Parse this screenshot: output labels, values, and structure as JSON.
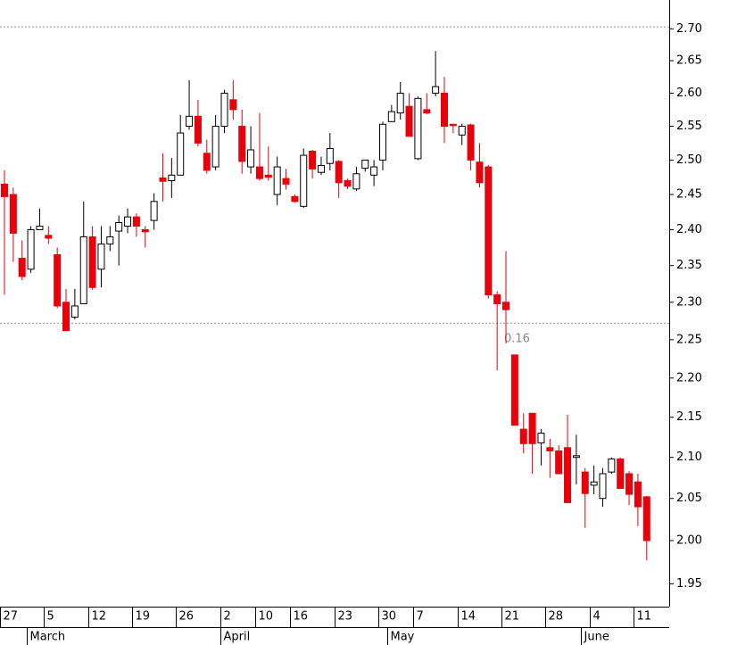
{
  "chart_data": {
    "type": "candlestick",
    "up_color": "#ffffff",
    "down_color": "#e8000b",
    "log_scale": true,
    "ylim": [
      1.924,
      2.746
    ],
    "yticks": [
      {
        "value": 2.7,
        "label": "2.70"
      },
      2.65,
      {
        "value": 2.6,
        "label": "2.60"
      },
      2.55,
      {
        "value": 2.5,
        "label": "2.50"
      },
      2.45,
      {
        "value": 2.4,
        "label": "2.40"
      },
      2.35,
      {
        "value": 2.3,
        "label": "2.30"
      },
      2.25,
      {
        "value": 2.2,
        "label": "2.20"
      },
      2.15,
      {
        "value": 2.1,
        "label": "2.10"
      },
      2.05,
      {
        "value": 2.0,
        "label": "2.00"
      },
      1.95
    ],
    "hlines": [
      2.703,
      2.272
    ],
    "annotation": "0.16",
    "day_ticks": [
      {
        "index": 0,
        "label": "27"
      },
      {
        "index": 5,
        "label": "5"
      },
      {
        "index": 10,
        "label": "12"
      },
      {
        "index": 15,
        "label": "19"
      },
      {
        "index": 20,
        "label": "26"
      },
      {
        "index": 25,
        "label": "2"
      },
      {
        "index": 29,
        "label": "10"
      },
      {
        "index": 33,
        "label": "16"
      },
      {
        "index": 38,
        "label": "23"
      },
      {
        "index": 43,
        "label": "30"
      },
      {
        "index": 47,
        "label": "7"
      },
      {
        "index": 52,
        "label": "14"
      },
      {
        "index": 57,
        "label": "21"
      },
      {
        "index": 62,
        "label": "28"
      },
      {
        "index": 67,
        "label": "4"
      },
      {
        "index": 72,
        "label": "11"
      }
    ],
    "month_ticks": [
      {
        "index": 3,
        "label": "March"
      },
      {
        "index": 25,
        "label": "April"
      },
      {
        "index": 44,
        "label": "May"
      },
      {
        "index": 66,
        "label": "June"
      }
    ],
    "open": [
      2.465,
      2.45,
      2.36,
      2.345,
      2.4,
      2.392,
      2.365,
      2.3,
      2.28,
      2.298,
      2.39,
      2.345,
      2.38,
      2.398,
      2.405,
      2.418,
      2.4,
      2.413,
      2.474,
      2.47,
      2.478,
      2.55,
      2.565,
      2.51,
      2.49,
      2.55,
      2.59,
      2.55,
      2.49,
      2.49,
      2.478,
      2.45,
      2.473,
      2.447,
      2.433,
      2.513,
      2.482,
      2.495,
      2.498,
      2.47,
      2.458,
      2.488,
      2.478,
      2.5,
      2.557,
      2.57,
      2.58,
      2.502,
      2.575,
      2.6,
      2.6,
      2.553,
      2.537,
      2.552,
      2.497,
      2.49,
      2.31,
      2.3,
      2.23,
      2.135,
      2.155,
      2.118,
      2.112,
      2.108,
      2.112,
      2.1,
      2.082,
      2.066,
      2.05,
      2.082,
      2.098,
      2.08,
      2.07,
      2.052
    ],
    "high": [
      2.485,
      2.46,
      2.385,
      2.405,
      2.43,
      2.405,
      2.375,
      2.318,
      2.318,
      2.44,
      2.405,
      2.405,
      2.405,
      2.42,
      2.43,
      2.423,
      2.405,
      2.452,
      2.51,
      2.503,
      2.567,
      2.62,
      2.59,
      2.53,
      2.567,
      2.605,
      2.62,
      2.575,
      2.55,
      2.57,
      2.52,
      2.505,
      2.487,
      2.45,
      2.517,
      2.515,
      2.505,
      2.54,
      2.5,
      2.473,
      2.49,
      2.5,
      2.5,
      2.557,
      2.582,
      2.617,
      2.6,
      2.595,
      2.6,
      2.665,
      2.625,
      2.554,
      2.554,
      2.554,
      2.525,
      2.493,
      2.315,
      2.37,
      2.23,
      2.155,
      2.155,
      2.135,
      2.123,
      2.115,
      2.153,
      2.128,
      2.087,
      2.09,
      2.087,
      2.1,
      2.1,
      2.083,
      2.08,
      2.053
    ],
    "low": [
      2.31,
      2.355,
      2.33,
      2.34,
      2.4,
      2.38,
      2.292,
      2.262,
      2.277,
      2.298,
      2.317,
      2.32,
      2.37,
      2.35,
      2.395,
      2.39,
      2.375,
      2.4,
      2.44,
      2.445,
      2.478,
      2.545,
      2.52,
      2.48,
      2.485,
      2.54,
      2.56,
      2.48,
      2.48,
      2.47,
      2.47,
      2.435,
      2.457,
      2.438,
      2.431,
      2.473,
      2.478,
      2.485,
      2.445,
      2.458,
      2.455,
      2.483,
      2.462,
      2.485,
      2.557,
      2.56,
      2.535,
      2.5,
      2.568,
      2.595,
      2.525,
      2.54,
      2.522,
      2.485,
      2.46,
      2.305,
      2.21,
      2.245,
      2.14,
      2.105,
      2.08,
      2.09,
      2.075,
      2.08,
      2.045,
      2.067,
      2.015,
      2.055,
      2.04,
      2.08,
      2.062,
      2.042,
      2.017,
      1.977
    ],
    "close": [
      2.447,
      2.395,
      2.335,
      2.4,
      2.405,
      2.388,
      2.295,
      2.262,
      2.295,
      2.39,
      2.32,
      2.38,
      2.39,
      2.41,
      2.418,
      2.405,
      2.397,
      2.44,
      2.469,
      2.478,
      2.54,
      2.565,
      2.525,
      2.485,
      2.55,
      2.6,
      2.575,
      2.498,
      2.515,
      2.473,
      2.475,
      2.49,
      2.465,
      2.44,
      2.507,
      2.487,
      2.492,
      2.517,
      2.467,
      2.462,
      2.48,
      2.5,
      2.49,
      2.553,
      2.572,
      2.6,
      2.535,
      2.592,
      2.57,
      2.61,
      2.55,
      2.551,
      2.55,
      2.5,
      2.467,
      2.31,
      2.298,
      2.29,
      2.14,
      2.117,
      2.117,
      2.13,
      2.108,
      2.08,
      2.045,
      2.102,
      2.056,
      2.07,
      2.08,
      2.098,
      2.062,
      2.055,
      2.04,
      2.0
    ]
  }
}
